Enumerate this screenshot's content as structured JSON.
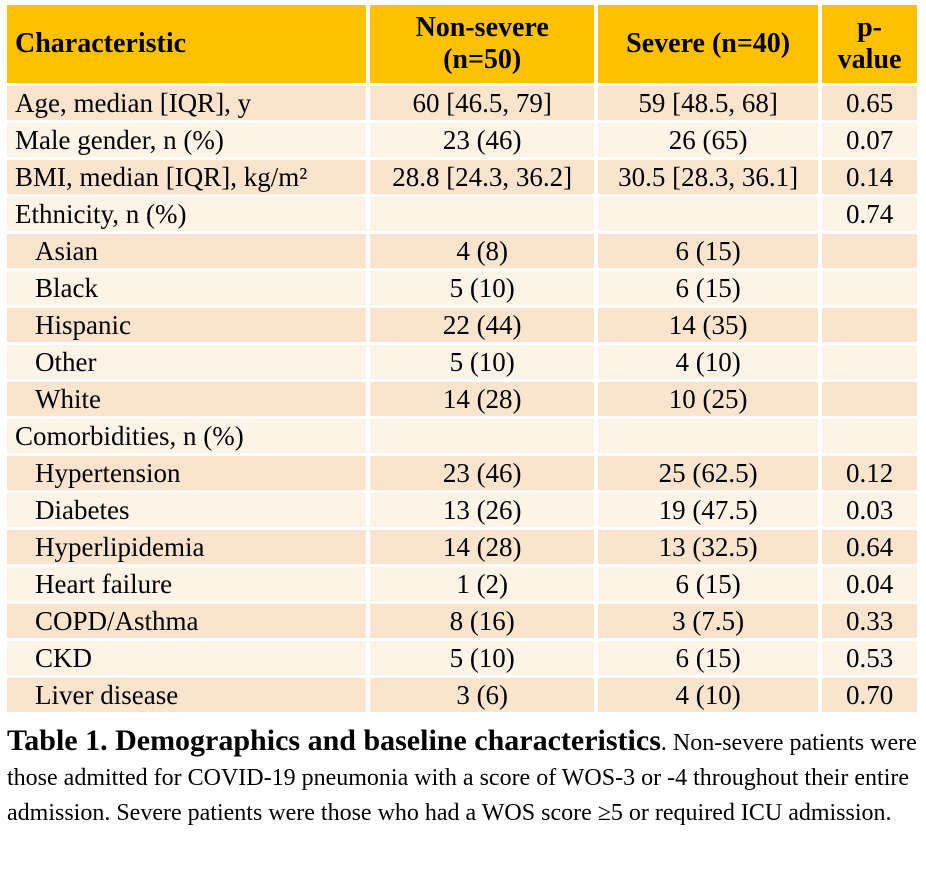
{
  "table": {
    "columns": [
      {
        "label": "Characteristic"
      },
      {
        "label": "Non-severe (n=50)"
      },
      {
        "label": "Severe (n=40)"
      },
      {
        "label": "p-value"
      }
    ],
    "rows": [
      {
        "label": "Age, median [IQR], y",
        "indent": false,
        "nonsevere": "60 [46.5, 79]",
        "severe": "59 [48.5, 68]",
        "p": "0.65"
      },
      {
        "label": "Male gender, n (%)",
        "indent": false,
        "nonsevere": "23 (46)",
        "severe": "26 (65)",
        "p": "0.07"
      },
      {
        "label": "BMI, median [IQR], kg/m²",
        "indent": false,
        "nonsevere": "28.8 [24.3, 36.2]",
        "severe": "30.5 [28.3, 36.1]",
        "p": "0.14"
      },
      {
        "label": "Ethnicity, n (%)",
        "indent": false,
        "nonsevere": "",
        "severe": "",
        "p": "0.74"
      },
      {
        "label": "Asian",
        "indent": true,
        "nonsevere": "4 (8)",
        "severe": "6 (15)",
        "p": ""
      },
      {
        "label": "Black",
        "indent": true,
        "nonsevere": "5 (10)",
        "severe": "6 (15)",
        "p": ""
      },
      {
        "label": "Hispanic",
        "indent": true,
        "nonsevere": "22 (44)",
        "severe": "14 (35)",
        "p": ""
      },
      {
        "label": "Other",
        "indent": true,
        "nonsevere": "5 (10)",
        "severe": "4 (10)",
        "p": ""
      },
      {
        "label": "White",
        "indent": true,
        "nonsevere": "14 (28)",
        "severe": "10 (25)",
        "p": ""
      },
      {
        "label": "Comorbidities, n (%)",
        "indent": false,
        "nonsevere": "",
        "severe": "",
        "p": ""
      },
      {
        "label": "Hypertension",
        "indent": true,
        "nonsevere": "23 (46)",
        "severe": "25 (62.5)",
        "p": "0.12"
      },
      {
        "label": "Diabetes",
        "indent": true,
        "nonsevere": "13 (26)",
        "severe": "19 (47.5)",
        "p": "0.03"
      },
      {
        "label": "Hyperlipidemia",
        "indent": true,
        "nonsevere": "14 (28)",
        "severe": "13 (32.5)",
        "p": "0.64"
      },
      {
        "label": "Heart failure",
        "indent": true,
        "nonsevere": "1 (2)",
        "severe": "6 (15)",
        "p": "0.04"
      },
      {
        "label": "COPD/Asthma",
        "indent": true,
        "nonsevere": "8 (16)",
        "severe": "3 (7.5)",
        "p": "0.33"
      },
      {
        "label": "CKD",
        "indent": true,
        "nonsevere": "5 (10)",
        "severe": "6 (15)",
        "p": "0.53"
      },
      {
        "label": "Liver disease",
        "indent": true,
        "nonsevere": "3 (6)",
        "severe": "4 (10)",
        "p": "0.70"
      }
    ]
  },
  "caption": {
    "title": "Table 1. Demographics and baseline characteristics",
    "body": ". Non-severe patients were those admitted for COVID-19 pneumonia with a score of WOS-3 or -4 throughout their entire admission. Severe patients were those who had a WOS score ≥5 or required ICU admission."
  },
  "colors": {
    "header_bg": "#FDC101",
    "row_dark": "#FBE4CD",
    "row_light": "#FDF3E7",
    "text": "#000000"
  }
}
